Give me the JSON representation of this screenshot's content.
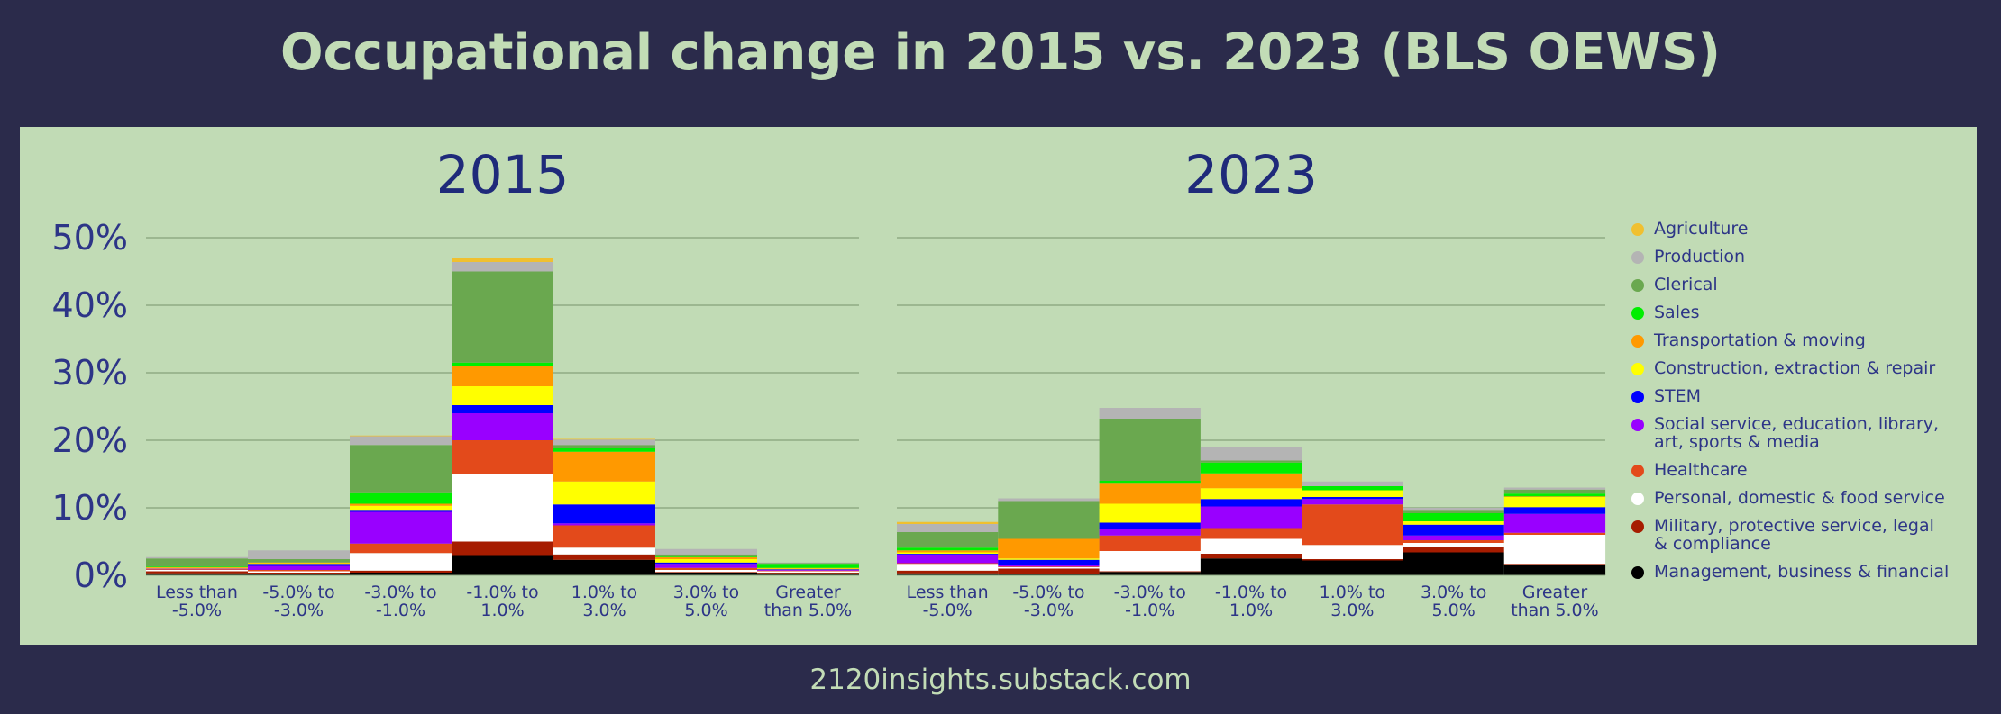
{
  "title": "Occupational change in 2015 vs. 2023 (BLS OEWS)",
  "footer": "2120insights.substack.com",
  "chart_data": {
    "type": "bar",
    "stacked": true,
    "subtype": "stacked histogram, two panels",
    "y_ticks": [
      "0%",
      "10%",
      "20%",
      "30%",
      "40%",
      "50%"
    ],
    "ylim": [
      0,
      50
    ],
    "categories": [
      "Less than\n-5.0%",
      "-5.0% to\n-3.0%",
      "-3.0% to\n-1.0%",
      "-1.0% to\n1.0%",
      "1.0% to\n3.0%",
      "3.0% to\n5.0%",
      "Greater\nthan 5.0%"
    ],
    "legend_order_top_to_bottom": [
      "Agriculture",
      "Production",
      "Clerical",
      "Sales",
      "Transportation & moving",
      "Construction, extraction & repair",
      "STEM",
      "Social service, education, library,\nart, sports & media",
      "Healthcare",
      "Personal, domestic & food service",
      "Military, protective service, legal\n& compliance",
      "Management, business & financial"
    ],
    "colors": [
      "#f0c030",
      "#b4b4b4",
      "#6aa84f",
      "#00ee00",
      "#ff9900",
      "#ffff00",
      "#0000ff",
      "#9900ff",
      "#e34a1b",
      "#ffffff",
      "#a61c00",
      "#000000"
    ],
    "legend_placement": "right",
    "grid": true,
    "panels": [
      {
        "title": "2015",
        "series_bottom_to_top": [
          {
            "name": "Management, business & financial",
            "values": [
              0.3,
              0.2,
              0.4,
              3.0,
              2.3,
              0.4,
              0.3
            ]
          },
          {
            "name": "Military, protective service, legal\n& compliance",
            "values": [
              0.3,
              0.2,
              0.3,
              2.0,
              0.8,
              0.1,
              0.1
            ]
          },
          {
            "name": "Personal, domestic & food service",
            "values": [
              0.2,
              0.2,
              2.6,
              10.0,
              1.0,
              0.3,
              0.2
            ]
          },
          {
            "name": "Healthcare",
            "values": [
              0.1,
              0.2,
              1.4,
              5.0,
              3.3,
              0.3,
              0.1
            ]
          },
          {
            "name": "Social service, education, library,\nart, sports & media",
            "values": [
              0.1,
              0.6,
              4.7,
              4.0,
              0.3,
              0.6,
              0.1
            ]
          },
          {
            "name": "STEM",
            "values": [
              0.0,
              0.3,
              0.3,
              1.2,
              2.8,
              0.2,
              0.1
            ]
          },
          {
            "name": "Construction, extraction & repair",
            "values": [
              0.1,
              0.1,
              0.6,
              2.8,
              3.4,
              0.5,
              0.1
            ]
          },
          {
            "name": "Transportation & moving",
            "values": [
              0.1,
              0.1,
              0.3,
              3.0,
              4.4,
              0.3,
              0.1
            ]
          },
          {
            "name": "Sales",
            "values": [
              0.1,
              0.0,
              1.7,
              0.5,
              0.5,
              0.2,
              0.6
            ]
          },
          {
            "name": "Clerical",
            "values": [
              1.2,
              0.5,
              7.0,
              13.5,
              0.5,
              0.2,
              0.1
            ]
          },
          {
            "name": "Production",
            "values": [
              0.2,
              1.3,
              1.3,
              1.4,
              0.8,
              0.8,
              0.1
            ]
          },
          {
            "name": "Agriculture",
            "values": [
              0.0,
              0.0,
              0.1,
              0.6,
              0.1,
              0.0,
              0.0
            ]
          }
        ]
      },
      {
        "title": "2023",
        "series_bottom_to_top": [
          {
            "name": "Management, business & financial",
            "values": [
              0.3,
              0.2,
              0.5,
              2.5,
              2.2,
              3.4,
              1.6
            ]
          },
          {
            "name": "Military, protective service, legal\n& compliance",
            "values": [
              0.4,
              0.8,
              0.1,
              0.7,
              0.2,
              0.8,
              0.1
            ]
          },
          {
            "name": "Personal, domestic & food service",
            "values": [
              1.0,
              0.2,
              3.0,
              2.2,
              2.1,
              0.6,
              4.3
            ]
          },
          {
            "name": "Healthcare",
            "values": [
              0.1,
              0.1,
              2.3,
              1.6,
              6.0,
              0.4,
              0.3
            ]
          },
          {
            "name": "Social service, education, library,\nart, sports & media",
            "values": [
              1.3,
              0.3,
              1.0,
              3.2,
              0.8,
              0.7,
              2.8
            ]
          },
          {
            "name": "STEM",
            "values": [
              0.1,
              0.7,
              0.9,
              1.1,
              0.3,
              1.6,
              1.0
            ]
          },
          {
            "name": "Construction, extraction & repair",
            "values": [
              0.2,
              0.2,
              2.8,
              1.6,
              1.0,
              0.5,
              1.5
            ]
          },
          {
            "name": "Transportation & moving",
            "values": [
              0.3,
              2.9,
              3.1,
              2.2,
              0.0,
              0.0,
              0.1
            ]
          },
          {
            "name": "Sales",
            "values": [
              0.4,
              0.0,
              0.3,
              1.6,
              0.6,
              1.2,
              0.4
            ]
          },
          {
            "name": "Clerical",
            "values": [
              2.3,
              5.6,
              9.2,
              0.3,
              0.0,
              0.5,
              0.6
            ]
          },
          {
            "name": "Production",
            "values": [
              1.2,
              0.4,
              1.6,
              2.0,
              0.7,
              0.3,
              0.3
            ]
          },
          {
            "name": "Agriculture",
            "values": [
              0.3,
              0.0,
              0.0,
              0.0,
              0.0,
              0.0,
              0.0
            ]
          }
        ]
      }
    ]
  }
}
